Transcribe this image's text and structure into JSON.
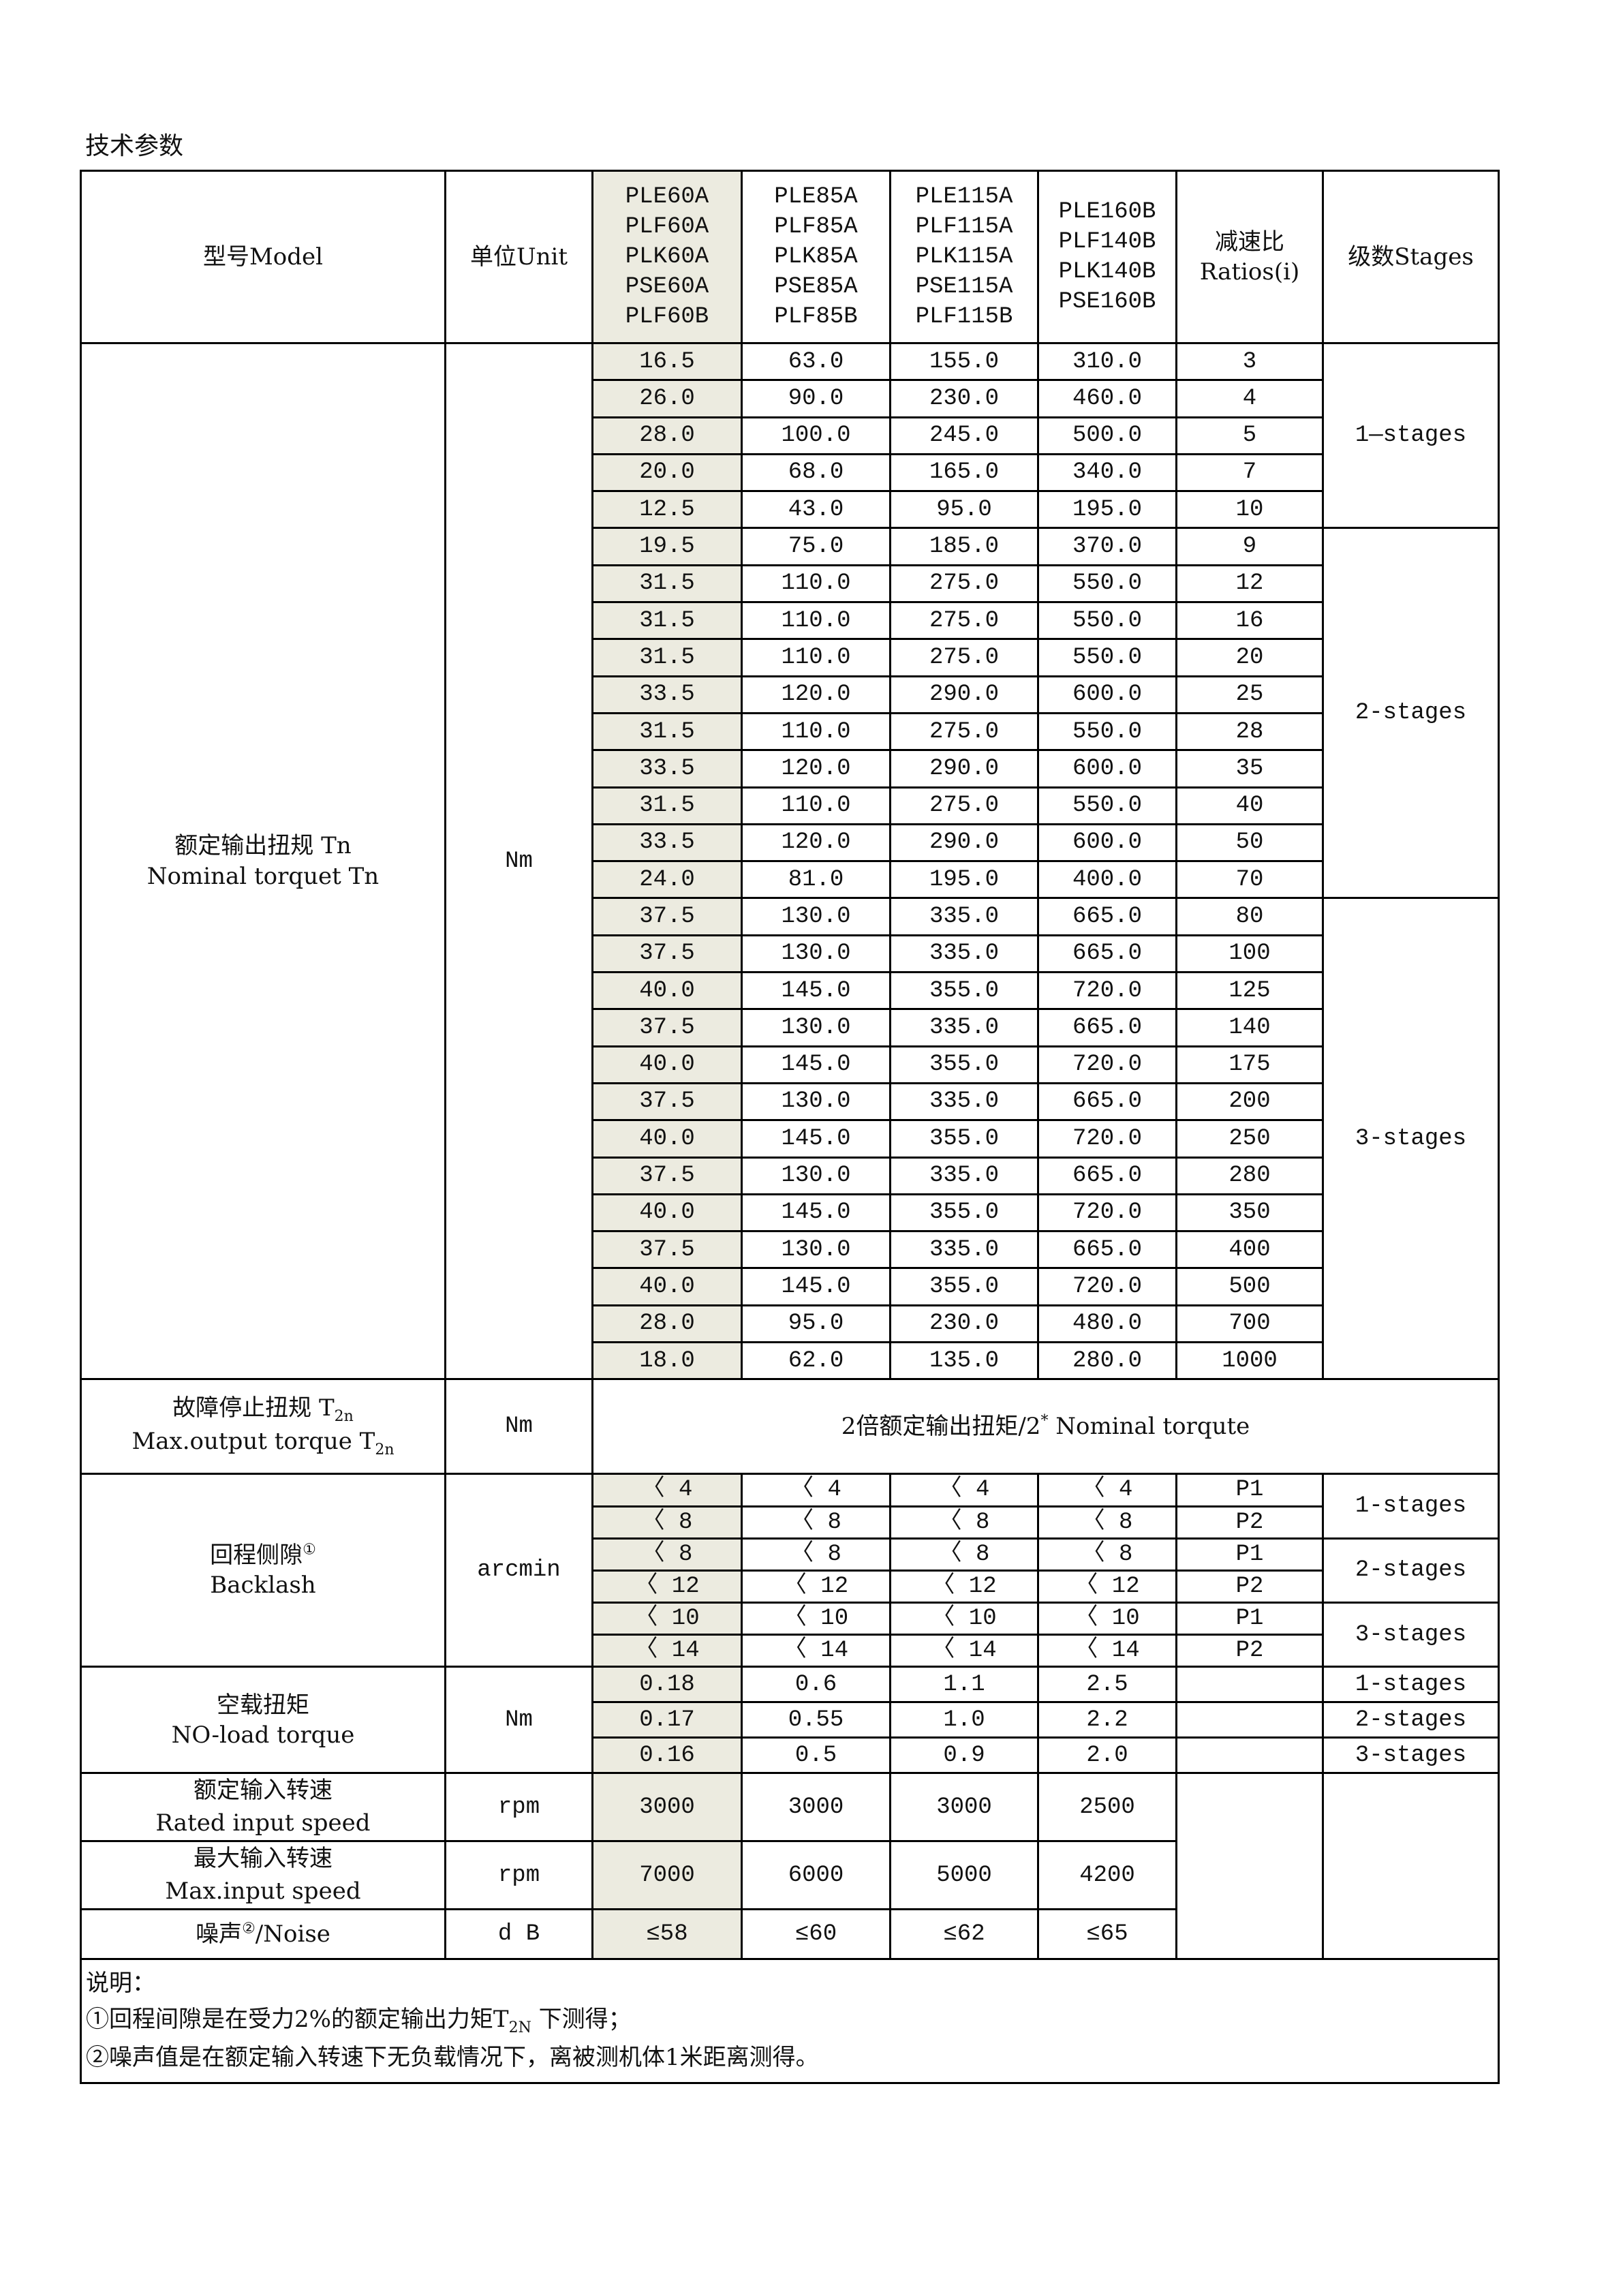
{
  "title": "技术参数",
  "header": {
    "model": "型号Model",
    "unit": "单位Unit",
    "models": [
      [
        "PLE60A",
        "PLF60A",
        "PLK60A",
        "PSE60A",
        "PLF60B"
      ],
      [
        "PLE85A",
        "PLF85A",
        "PLK85A",
        "PSE85A",
        "PLF85B"
      ],
      [
        "PLE115A",
        "PLF115A",
        "PLK115A",
        "PSE115A",
        "PLF115B"
      ],
      [
        "PLE160B",
        "PLF140B",
        "PLK140B",
        "PSE160B"
      ]
    ],
    "ratio_cn": "减速比",
    "ratio_en": "Ratios(i)",
    "stages": "级数Stages"
  },
  "highlight_color": "#ecebe0",
  "nominal": {
    "label_cn": "额定输出扭规 Tn",
    "label_en": "Nominal torquet Tn",
    "unit": "Nm",
    "rows": [
      [
        "16.5",
        "63.0",
        "155.0",
        "310.0",
        "3"
      ],
      [
        "26.0",
        "90.0",
        "230.0",
        "460.0",
        "4"
      ],
      [
        "28.0",
        "100.0",
        "245.0",
        "500.0",
        "5"
      ],
      [
        "20.0",
        "68.0",
        "165.0",
        "340.0",
        "7"
      ],
      [
        "12.5",
        "43.0",
        "95.0",
        "195.0",
        "10"
      ],
      [
        "19.5",
        "75.0",
        "185.0",
        "370.0",
        "9"
      ],
      [
        "31.5",
        "110.0",
        "275.0",
        "550.0",
        "12"
      ],
      [
        "31.5",
        "110.0",
        "275.0",
        "550.0",
        "16"
      ],
      [
        "31.5",
        "110.0",
        "275.0",
        "550.0",
        "20"
      ],
      [
        "33.5",
        "120.0",
        "290.0",
        "600.0",
        "25"
      ],
      [
        "31.5",
        "110.0",
        "275.0",
        "550.0",
        "28"
      ],
      [
        "33.5",
        "120.0",
        "290.0",
        "600.0",
        "35"
      ],
      [
        "31.5",
        "110.0",
        "275.0",
        "550.0",
        "40"
      ],
      [
        "33.5",
        "120.0",
        "290.0",
        "600.0",
        "50"
      ],
      [
        "24.0",
        "81.0",
        "195.0",
        "400.0",
        "70"
      ],
      [
        "37.5",
        "130.0",
        "335.0",
        "665.0",
        "80"
      ],
      [
        "37.5",
        "130.0",
        "335.0",
        "665.0",
        "100"
      ],
      [
        "40.0",
        "145.0",
        "355.0",
        "720.0",
        "125"
      ],
      [
        "37.5",
        "130.0",
        "335.0",
        "665.0",
        "140"
      ],
      [
        "40.0",
        "145.0",
        "355.0",
        "720.0",
        "175"
      ],
      [
        "37.5",
        "130.0",
        "335.0",
        "665.0",
        "200"
      ],
      [
        "40.0",
        "145.0",
        "355.0",
        "720.0",
        "250"
      ],
      [
        "37.5",
        "130.0",
        "335.0",
        "665.0",
        "280"
      ],
      [
        "40.0",
        "145.0",
        "355.0",
        "720.0",
        "350"
      ],
      [
        "37.5",
        "130.0",
        "335.0",
        "665.0",
        "400"
      ],
      [
        "40.0",
        "145.0",
        "355.0",
        "720.0",
        "500"
      ],
      [
        "28.0",
        "95.0",
        "230.0",
        "480.0",
        "700"
      ],
      [
        "18.0",
        "62.0",
        "135.0",
        "280.0",
        "1000"
      ]
    ],
    "stage_groups": [
      {
        "label": "1—stages",
        "count": 5
      },
      {
        "label": "2-stages",
        "count": 10
      },
      {
        "label": "3-stages",
        "count": 13
      }
    ]
  },
  "max_torque": {
    "label_cn": "故障停止扭规 T",
    "label_cn_sub": "2n",
    "label_en": "Max.output torque T",
    "label_en_sub": "2n",
    "unit": "Nm",
    "value_a": "2倍额定输出扭矩/2",
    "value_sup": "*",
    "value_b": " Nominal torqute"
  },
  "backlash": {
    "label_cn": "回程侧隙",
    "label_sup": "①",
    "label_en": "Backlash",
    "unit": "arcmin",
    "rows": [
      [
        "〈 4",
        "〈 4",
        "〈 4",
        "〈 4",
        "P1"
      ],
      [
        "〈 8",
        "〈 8",
        "〈 8",
        "〈 8",
        "P2"
      ],
      [
        "〈 8",
        "〈 8",
        "〈 8",
        "〈 8",
        "P1"
      ],
      [
        "〈 12",
        "〈 12",
        "〈 12",
        "〈 12",
        "P2"
      ],
      [
        "〈 10",
        "〈 10",
        "〈 10",
        "〈 10",
        "P1"
      ],
      [
        "〈 14",
        "〈 14",
        "〈 14",
        "〈 14",
        "P2"
      ]
    ],
    "stages": [
      "1-stages",
      "2-stages",
      "3-stages"
    ]
  },
  "noload": {
    "label_cn": "空载扭矩",
    "label_en": "NO-load torque",
    "unit": "Nm",
    "rows": [
      [
        "0.18",
        "0.6",
        "1.1",
        "2.5",
        "1-stages"
      ],
      [
        "0.17",
        "0.55",
        "1.0",
        "2.2",
        "2-stages"
      ],
      [
        "0.16",
        "0.5",
        "0.9",
        "2.0",
        "3-stages"
      ]
    ]
  },
  "rated_speed": {
    "label_cn": "额定输入转速",
    "label_en": "Rated input speed",
    "unit": "rpm",
    "values": [
      "3000",
      "3000",
      "3000",
      "2500"
    ]
  },
  "max_speed": {
    "label_cn": "最大输入转速",
    "label_en": "Max.input speed",
    "unit": "rpm",
    "values": [
      "7000",
      "6000",
      "5000",
      "4200"
    ]
  },
  "noise": {
    "label_cn": "噪声",
    "label_sup": "②",
    "label_en": "/Noise",
    "unit": "d B",
    "values": [
      "≤58",
      "≤60",
      "≤62",
      "≤65"
    ]
  },
  "notes": {
    "heading": "说明：",
    "note1_a": "①回程间隙是在受力2%的额定输出力矩T",
    "note1_sub": "2N",
    "note1_b": " 下测得；",
    "note2": "②噪声值是在额定输入转速下无负载情况下，离被测机体1米距离测得。"
  }
}
